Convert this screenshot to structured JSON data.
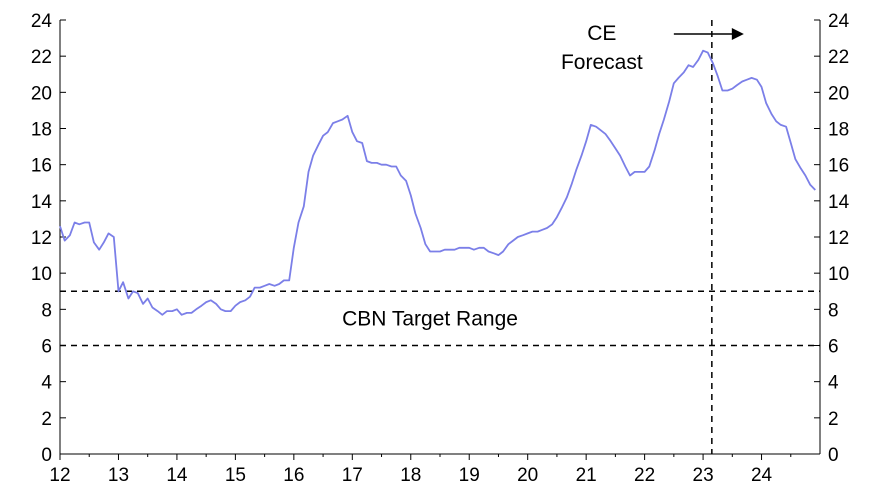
{
  "chart_data": {
    "type": "line",
    "x_range": [
      12,
      25
    ],
    "ylim": [
      0,
      24
    ],
    "y_ticks": [
      0,
      2,
      4,
      6,
      8,
      10,
      12,
      14,
      16,
      18,
      20,
      22,
      24
    ],
    "x_ticks": [
      12,
      13,
      14,
      15,
      16,
      17,
      18,
      19,
      20,
      21,
      22,
      23,
      24
    ],
    "x_tick_labels": [
      "12",
      "13",
      "14",
      "15",
      "16",
      "17",
      "18",
      "19",
      "20",
      "21",
      "22",
      "23",
      "24"
    ],
    "secondary_y_axis": true,
    "grid": false,
    "series": [
      {
        "color": "#7b7fe8",
        "points": [
          [
            12.0,
            12.6
          ],
          [
            12.08,
            11.8
          ],
          [
            12.17,
            12.1
          ],
          [
            12.25,
            12.8
          ],
          [
            12.33,
            12.7
          ],
          [
            12.42,
            12.8
          ],
          [
            12.5,
            12.8
          ],
          [
            12.58,
            11.7
          ],
          [
            12.67,
            11.3
          ],
          [
            12.75,
            11.7
          ],
          [
            12.83,
            12.2
          ],
          [
            12.92,
            12.0
          ],
          [
            13.0,
            9.0
          ],
          [
            13.08,
            9.5
          ],
          [
            13.17,
            8.6
          ],
          [
            13.25,
            9.0
          ],
          [
            13.33,
            8.9
          ],
          [
            13.42,
            8.3
          ],
          [
            13.5,
            8.6
          ],
          [
            13.58,
            8.1
          ],
          [
            13.67,
            7.9
          ],
          [
            13.75,
            7.7
          ],
          [
            13.83,
            7.9
          ],
          [
            13.92,
            7.9
          ],
          [
            14.0,
            8.0
          ],
          [
            14.08,
            7.7
          ],
          [
            14.17,
            7.8
          ],
          [
            14.25,
            7.8
          ],
          [
            14.33,
            8.0
          ],
          [
            14.42,
            8.2
          ],
          [
            14.5,
            8.4
          ],
          [
            14.58,
            8.5
          ],
          [
            14.67,
            8.3
          ],
          [
            14.75,
            8.0
          ],
          [
            14.83,
            7.9
          ],
          [
            14.92,
            7.9
          ],
          [
            15.0,
            8.2
          ],
          [
            15.08,
            8.4
          ],
          [
            15.17,
            8.5
          ],
          [
            15.25,
            8.7
          ],
          [
            15.33,
            9.2
          ],
          [
            15.42,
            9.2
          ],
          [
            15.5,
            9.3
          ],
          [
            15.58,
            9.4
          ],
          [
            15.67,
            9.3
          ],
          [
            15.75,
            9.4
          ],
          [
            15.83,
            9.6
          ],
          [
            15.92,
            9.6
          ],
          [
            16.0,
            11.4
          ],
          [
            16.08,
            12.8
          ],
          [
            16.17,
            13.7
          ],
          [
            16.25,
            15.6
          ],
          [
            16.33,
            16.5
          ],
          [
            16.42,
            17.1
          ],
          [
            16.5,
            17.6
          ],
          [
            16.58,
            17.8
          ],
          [
            16.67,
            18.3
          ],
          [
            16.75,
            18.4
          ],
          [
            16.83,
            18.5
          ],
          [
            16.92,
            18.7
          ],
          [
            17.0,
            17.8
          ],
          [
            17.08,
            17.3
          ],
          [
            17.17,
            17.2
          ],
          [
            17.25,
            16.2
          ],
          [
            17.33,
            16.1
          ],
          [
            17.42,
            16.1
          ],
          [
            17.5,
            16.0
          ],
          [
            17.58,
            16.0
          ],
          [
            17.67,
            15.9
          ],
          [
            17.75,
            15.9
          ],
          [
            17.83,
            15.4
          ],
          [
            17.92,
            15.1
          ],
          [
            18.0,
            14.3
          ],
          [
            18.08,
            13.3
          ],
          [
            18.17,
            12.5
          ],
          [
            18.25,
            11.6
          ],
          [
            18.33,
            11.2
          ],
          [
            18.42,
            11.2
          ],
          [
            18.5,
            11.2
          ],
          [
            18.58,
            11.3
          ],
          [
            18.67,
            11.3
          ],
          [
            18.75,
            11.3
          ],
          [
            18.83,
            11.4
          ],
          [
            18.92,
            11.4
          ],
          [
            19.0,
            11.4
          ],
          [
            19.08,
            11.3
          ],
          [
            19.17,
            11.4
          ],
          [
            19.25,
            11.4
          ],
          [
            19.33,
            11.2
          ],
          [
            19.42,
            11.1
          ],
          [
            19.5,
            11.0
          ],
          [
            19.58,
            11.2
          ],
          [
            19.67,
            11.6
          ],
          [
            19.75,
            11.8
          ],
          [
            19.83,
            12.0
          ],
          [
            19.92,
            12.1
          ],
          [
            20.0,
            12.2
          ],
          [
            20.08,
            12.3
          ],
          [
            20.17,
            12.3
          ],
          [
            20.25,
            12.4
          ],
          [
            20.33,
            12.5
          ],
          [
            20.42,
            12.7
          ],
          [
            20.5,
            13.1
          ],
          [
            20.58,
            13.6
          ],
          [
            20.67,
            14.2
          ],
          [
            20.75,
            14.9
          ],
          [
            20.83,
            15.7
          ],
          [
            20.92,
            16.5
          ],
          [
            21.0,
            17.3
          ],
          [
            21.08,
            18.2
          ],
          [
            21.17,
            18.1
          ],
          [
            21.25,
            17.9
          ],
          [
            21.33,
            17.7
          ],
          [
            21.42,
            17.3
          ],
          [
            21.5,
            16.9
          ],
          [
            21.58,
            16.5
          ],
          [
            21.67,
            15.9
          ],
          [
            21.75,
            15.4
          ],
          [
            21.83,
            15.6
          ],
          [
            21.92,
            15.6
          ],
          [
            22.0,
            15.6
          ],
          [
            22.08,
            15.9
          ],
          [
            22.17,
            16.8
          ],
          [
            22.25,
            17.7
          ],
          [
            22.33,
            18.5
          ],
          [
            22.42,
            19.5
          ],
          [
            22.5,
            20.5
          ],
          [
            22.58,
            20.8
          ],
          [
            22.67,
            21.1
          ],
          [
            22.75,
            21.5
          ],
          [
            22.83,
            21.4
          ],
          [
            22.92,
            21.8
          ],
          [
            23.0,
            22.3
          ],
          [
            23.08,
            22.2
          ],
          [
            23.17,
            21.6
          ],
          [
            23.25,
            20.9
          ],
          [
            23.33,
            20.1
          ],
          [
            23.42,
            20.1
          ],
          [
            23.5,
            20.2
          ],
          [
            23.58,
            20.4
          ],
          [
            23.67,
            20.6
          ],
          [
            23.75,
            20.7
          ],
          [
            23.83,
            20.8
          ],
          [
            23.92,
            20.7
          ],
          [
            24.0,
            20.3
          ],
          [
            24.08,
            19.4
          ],
          [
            24.17,
            18.8
          ],
          [
            24.25,
            18.4
          ],
          [
            24.33,
            18.2
          ],
          [
            24.42,
            18.1
          ],
          [
            24.5,
            17.2
          ],
          [
            24.58,
            16.3
          ],
          [
            24.67,
            15.8
          ],
          [
            24.75,
            15.4
          ],
          [
            24.83,
            14.9
          ],
          [
            24.92,
            14.6
          ]
        ]
      }
    ],
    "reference_lines": {
      "horizontal": [
        9,
        6
      ],
      "vertical": [
        23.15
      ]
    },
    "annotations": {
      "forecast_label_line1": "CE",
      "forecast_label_line2": "Forecast",
      "target_range_label": "CBN Target Range"
    }
  }
}
